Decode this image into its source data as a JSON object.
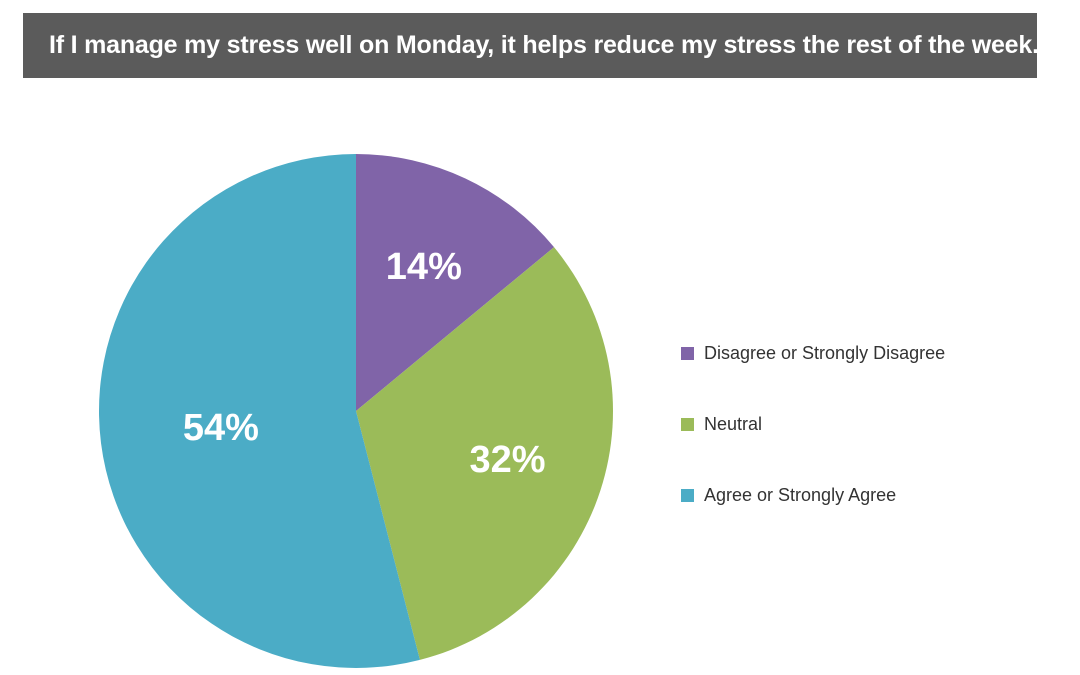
{
  "title": "If I manage my stress well on Monday, it helps reduce my stress the rest of the week.",
  "chart_data": {
    "type": "pie",
    "categories": [
      "Disagree or Strongly Disagree",
      "Neutral",
      "Agree or Strongly Agree"
    ],
    "values": [
      14,
      32,
      54
    ],
    "data_labels": [
      "14%",
      "32%",
      "54%"
    ],
    "colors": [
      "#8064a8",
      "#9bbb59",
      "#4bacc6"
    ],
    "label_color": "#ffffff",
    "start": "12 o'clock",
    "direction": "clockwise",
    "legend_position": "right"
  }
}
